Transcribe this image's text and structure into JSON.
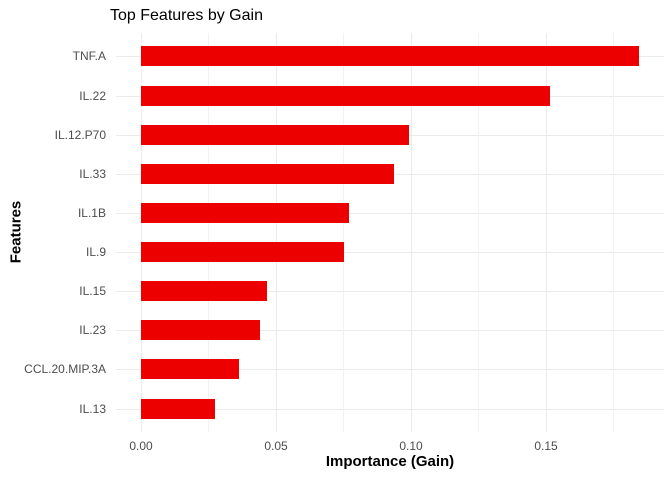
{
  "chart_data": {
    "type": "bar",
    "orientation": "horizontal",
    "title": "Top Features by Gain",
    "xlabel": "Importance (Gain)",
    "ylabel": "Features",
    "categories": [
      "TNF.A",
      "IL.22",
      "IL.12.P70",
      "IL.33",
      "IL.1B",
      "IL.9",
      "IL.15",
      "IL.23",
      "CCL.20.MIP.3A",
      "IL.13"
    ],
    "values": [
      0.1847,
      0.1514,
      0.0995,
      0.0938,
      0.0771,
      0.0753,
      0.0466,
      0.0441,
      0.0363,
      0.0273
    ],
    "x_major_ticks": [
      0.0,
      0.05,
      0.1,
      0.15
    ],
    "x_tick_labels": [
      "0.00",
      "0.05",
      "0.10",
      "0.15"
    ],
    "x_minor_ticks": [
      0.025,
      0.075,
      0.125,
      0.175
    ],
    "x_range_shown": [
      -0.0092,
      0.1939
    ],
    "bar_width_fraction": 0.5,
    "grid": "major-and-minor",
    "legend": "none",
    "colors": {
      "bar": "#ED0000",
      "grid_major": "#EBEBEB",
      "grid_minor": "#F2F2F2",
      "axis_text": "#4D4D4D",
      "title_text": "#000000",
      "background": "#FFFFFF"
    }
  }
}
